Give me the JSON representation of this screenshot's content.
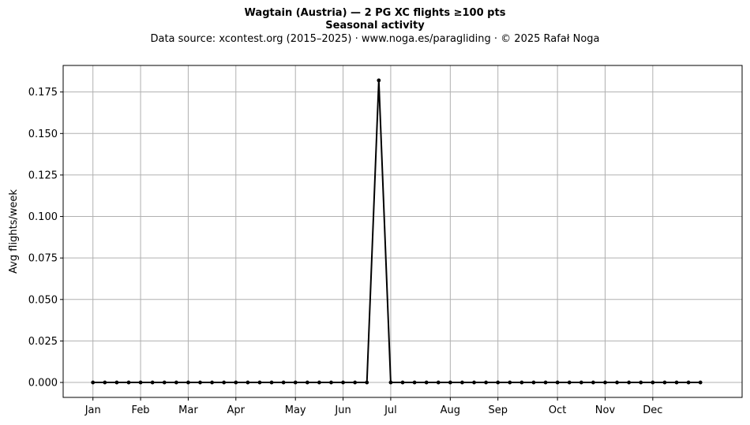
{
  "chart_data": {
    "type": "line",
    "title": "Wagtain (Austria)  —  2 PG XC flights ≥100 pts",
    "subtitle": "Seasonal activity",
    "source_line": "Data source: xcontest.org (2015–2025)  ·  www.noga.es/paragliding  ·  © 2025 Rafał Noga",
    "ylabel": "Avg flights/week",
    "xlabel": "",
    "x_ticks": [
      {
        "label": "Jan",
        "week": 1
      },
      {
        "label": "Feb",
        "week": 5
      },
      {
        "label": "Mar",
        "week": 9
      },
      {
        "label": "Apr",
        "week": 13
      },
      {
        "label": "May",
        "week": 18
      },
      {
        "label": "Jun",
        "week": 22
      },
      {
        "label": "Jul",
        "week": 26
      },
      {
        "label": "Aug",
        "week": 31
      },
      {
        "label": "Sep",
        "week": 35
      },
      {
        "label": "Oct",
        "week": 40
      },
      {
        "label": "Nov",
        "week": 44
      },
      {
        "label": "Dec",
        "week": 48
      }
    ],
    "y_ticks": [
      "0.000",
      "0.025",
      "0.050",
      "0.075",
      "0.100",
      "0.125",
      "0.150",
      "0.175"
    ],
    "xlim": [
      -1.5,
      55.5
    ],
    "ylim": [
      -0.009,
      0.191
    ],
    "grid": true,
    "line_color": "#000000",
    "series": [
      {
        "x": [
          1,
          2,
          3,
          4,
          5,
          6,
          7,
          8,
          9,
          10,
          11,
          12,
          13,
          14,
          15,
          16,
          17,
          18,
          19,
          20,
          21,
          22,
          23,
          24,
          25,
          26,
          27,
          28,
          29,
          30,
          31,
          32,
          33,
          34,
          35,
          36,
          37,
          38,
          39,
          40,
          41,
          42,
          43,
          44,
          45,
          46,
          47,
          48,
          49,
          50,
          51,
          52
        ],
        "values": [
          0,
          0,
          0,
          0,
          0,
          0,
          0,
          0,
          0,
          0,
          0,
          0,
          0,
          0,
          0,
          0,
          0,
          0,
          0,
          0,
          0,
          0,
          0,
          0,
          0.182,
          0,
          0,
          0,
          0,
          0,
          0,
          0,
          0,
          0,
          0,
          0,
          0,
          0,
          0,
          0,
          0,
          0,
          0,
          0,
          0,
          0,
          0,
          0,
          0,
          0,
          0,
          0
        ]
      }
    ]
  }
}
